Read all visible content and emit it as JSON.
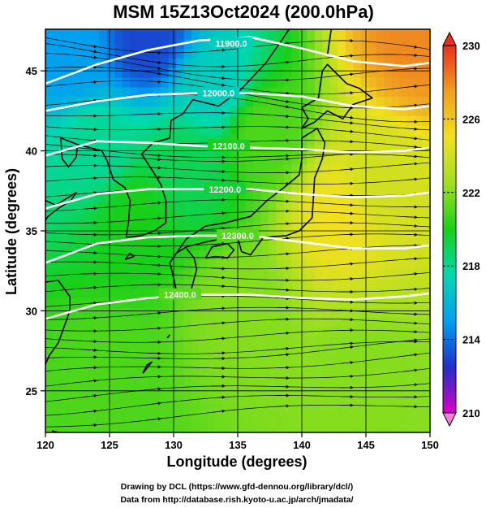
{
  "chart_data": {
    "type": "heatmap",
    "title": "MSM 15Z13Oct2024 (200.0hPa)",
    "xlabel": "Longitude (degrees)",
    "ylabel": "Latitude  (degrees)",
    "xlim": [
      120,
      150
    ],
    "ylim": [
      22.4,
      47.6
    ],
    "x_ticks": [
      "120",
      "125",
      "130",
      "135",
      "140",
      "145",
      "150"
    ],
    "y_ticks": [
      "25",
      "30",
      "35",
      "40",
      "45"
    ],
    "grid": true,
    "colorbar": {
      "min": 210,
      "max": 230,
      "tick_labels": [
        "230",
        "226",
        "222",
        "218",
        "214",
        "210"
      ],
      "colors": [
        "#d800c8",
        "#2030c8",
        "#00a0f0",
        "#00d8b0",
        "#18d018",
        "#a0e020",
        "#f0e020",
        "#f0a020",
        "#e83020"
      ]
    },
    "temperature_field": {
      "description_units": "K",
      "points": [
        {
          "lon": 122,
          "lat": 46,
          "value": 215
        },
        {
          "lon": 128,
          "lat": 47,
          "value": 213
        },
        {
          "lon": 133,
          "lat": 44,
          "value": 217
        },
        {
          "lon": 124,
          "lat": 40,
          "value": 218
        },
        {
          "lon": 131,
          "lat": 39,
          "value": 219
        },
        {
          "lon": 127,
          "lat": 36,
          "value": 220
        },
        {
          "lon": 137,
          "lat": 41,
          "value": 221
        },
        {
          "lon": 143,
          "lat": 36,
          "value": 225
        },
        {
          "lon": 146,
          "lat": 38,
          "value": 224
        },
        {
          "lon": 149,
          "lat": 47,
          "value": 228
        },
        {
          "lon": 135,
          "lat": 30,
          "value": 222
        },
        {
          "lon": 125,
          "lat": 26,
          "value": 221
        },
        {
          "lon": 145,
          "lat": 26,
          "value": 222
        }
      ]
    },
    "height_contours": [
      {
        "label": "11900.0",
        "label_at": [
          134.5,
          46.7
        ],
        "points": [
          [
            120,
            44.2
          ],
          [
            124,
            45.4
          ],
          [
            128,
            46.3
          ],
          [
            132,
            46.9
          ],
          [
            136,
            47.1
          ],
          [
            140,
            46.4
          ],
          [
            144,
            45.6
          ],
          [
            148,
            45.3
          ],
          [
            150,
            45.5
          ]
        ]
      },
      {
        "label": "12000.0",
        "label_at": [
          133.5,
          43.6
        ],
        "points": [
          [
            120,
            42.5
          ],
          [
            124,
            43.1
          ],
          [
            128,
            43.5
          ],
          [
            132,
            43.6
          ],
          [
            136,
            43.6
          ],
          [
            140,
            43.4
          ],
          [
            144,
            42.8
          ],
          [
            148,
            42.6
          ],
          [
            150,
            42.8
          ]
        ]
      },
      {
        "label": "12100.0",
        "label_at": [
          134.3,
          40.3
        ],
        "points": [
          [
            120,
            39.7
          ],
          [
            124,
            40.6
          ],
          [
            128,
            40.5
          ],
          [
            132,
            40.3
          ],
          [
            136,
            40.2
          ],
          [
            140,
            40.1
          ],
          [
            144,
            39.9
          ],
          [
            148,
            40.0
          ],
          [
            150,
            40.2
          ]
        ]
      },
      {
        "label": "12200.0",
        "label_at": [
          134.0,
          37.6
        ],
        "points": [
          [
            120,
            36.4
          ],
          [
            124,
            37.3
          ],
          [
            128,
            37.6
          ],
          [
            132,
            37.6
          ],
          [
            136,
            37.6
          ],
          [
            140,
            37.3
          ],
          [
            144,
            37.1
          ],
          [
            148,
            37.2
          ],
          [
            150,
            37.4
          ]
        ]
      },
      {
        "label": "12300.0",
        "label_at": [
          135.0,
          34.7
        ],
        "points": [
          [
            120,
            33.0
          ],
          [
            124,
            34.2
          ],
          [
            128,
            34.6
          ],
          [
            132,
            34.7
          ],
          [
            136,
            34.7
          ],
          [
            140,
            34.3
          ],
          [
            144,
            33.9
          ],
          [
            148,
            33.9
          ],
          [
            150,
            34.1
          ]
        ]
      },
      {
        "label": "12400.0",
        "label_at": [
          130.5,
          31.0
        ],
        "points": [
          [
            120,
            29.5
          ],
          [
            124,
            30.4
          ],
          [
            128,
            30.8
          ],
          [
            132,
            31.0
          ],
          [
            136,
            31.0
          ],
          [
            140,
            30.8
          ],
          [
            144,
            30.7
          ],
          [
            148,
            30.9
          ],
          [
            150,
            31.1
          ]
        ]
      }
    ]
  },
  "credits": {
    "line1": "Drawing by DCL (https://www.gfd-dennou.org/library/dcl/)",
    "line2": "Data from http://database.rish.kyoto-u.ac.jp/arch/jmadata/"
  }
}
